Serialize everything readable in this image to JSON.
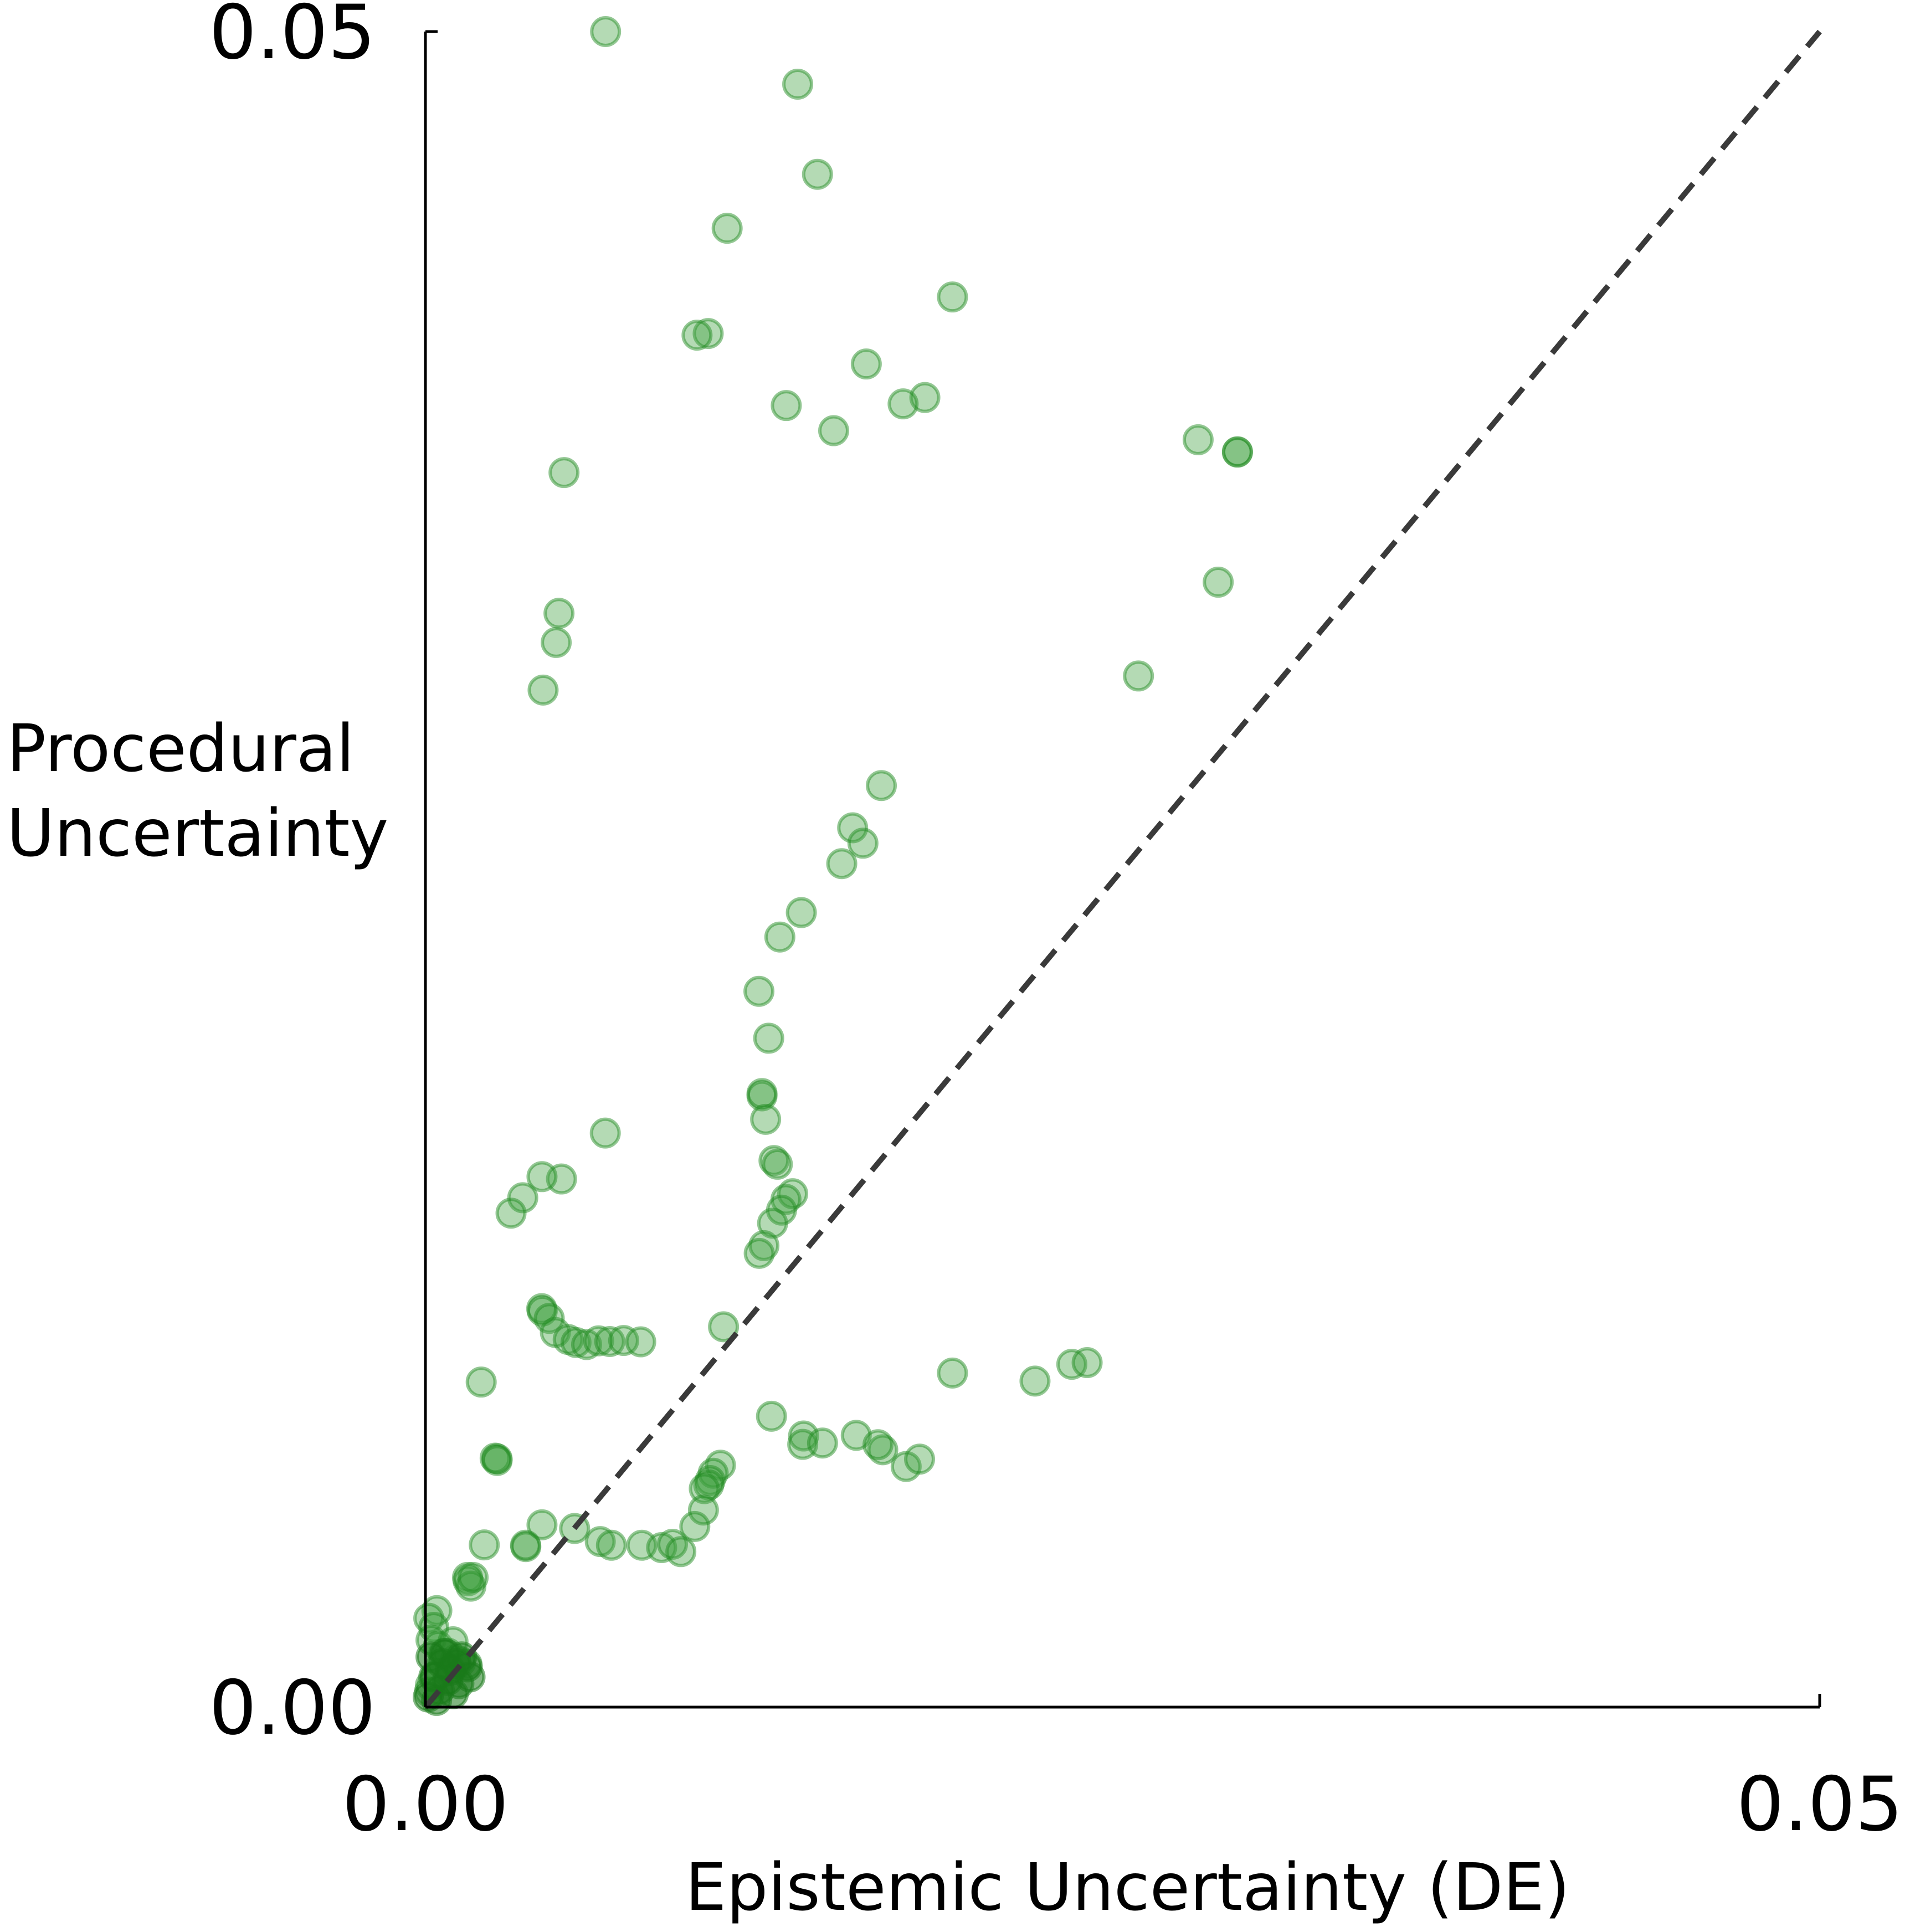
{
  "chart_data": {
    "type": "scatter",
    "title": "",
    "xlabel": "Epistemic Uncertainty (DE)",
    "ylabel_lines": [
      "Procedural",
      "Uncertainty"
    ],
    "xlim": [
      0.0,
      0.05
    ],
    "ylim": [
      0.0,
      0.05
    ],
    "x_tick_labels": [
      "0.00",
      "0.05"
    ],
    "y_tick_labels": [
      "0.00",
      "0.05"
    ],
    "x_ticks": [
      0.0,
      0.05
    ],
    "y_ticks": [
      0.0,
      0.05
    ],
    "grid": false,
    "reference_line": {
      "style": "dashed",
      "from": [
        0.0,
        0.0
      ],
      "to": [
        0.05,
        0.05
      ],
      "color": "#3a3a3a"
    },
    "point_color": "#1f8a1f",
    "point_fill": "#3a9e3a",
    "point_alpha": 0.38,
    "series": [
      {
        "name": "points",
        "x": [
          0.00646,
          0.01335,
          0.01406,
          0.01082,
          0.0189,
          0.01014,
          0.00974,
          0.01581,
          0.01791,
          0.01713,
          0.01294,
          0.01464,
          0.02771,
          0.02912,
          0.02912,
          0.02843,
          0.02557,
          0.00497,
          0.00479,
          0.00469,
          0.00422,
          0.01635,
          0.01532,
          0.01493,
          0.01569,
          0.01348,
          0.01271,
          0.01196,
          0.00645,
          0.01231,
          0.01207,
          0.01207,
          0.0122,
          0.0125,
          0.01262,
          0.01317,
          0.01293,
          0.01277,
          0.01245,
          0.01214,
          0.01197,
          0.00488,
          0.00418,
          0.00349,
          0.00307,
          0.00417,
          0.00419,
          0.00444,
          0.00466,
          0.00512,
          0.0054,
          0.00578,
          0.00621,
          0.00661,
          0.00711,
          0.00772,
          0.01069,
          0.0189,
          0.02186,
          0.02318,
          0.02373,
          0.002,
          0.00257,
          0.0025,
          0.00257,
          0.01241,
          0.01356,
          0.01353,
          0.01424,
          0.01545,
          0.0164,
          0.01623,
          0.01724,
          0.01772,
          0.01058,
          0.01032,
          0.01021,
          0.01016,
          0.01,
          0.00997,
          0.00966,
          0.00418,
          0.00535,
          0.0036,
          0.00359,
          0.00211,
          0.00151,
          0.00153,
          0.00163,
          0.00171,
          0.00627,
          0.00667,
          0.00776,
          0.00847,
          0.00886,
          0.00916,
          0.00041,
          0.00012,
          0.0003,
          0.0002,
          0.00046,
          0.00081,
          0.00108,
          0.00127,
          0.00149,
          0.00051,
          0.00066,
          0.00099,
          0.00018,
          0.00035,
          0.00014
        ],
        "y": [
          0.05,
          0.04843,
          0.04574,
          0.04413,
          0.04208,
          0.04099,
          0.04094,
          0.04008,
          0.03908,
          0.03889,
          0.03884,
          0.03809,
          0.03782,
          0.03745,
          0.03746,
          0.03357,
          0.03077,
          0.03684,
          0.03264,
          0.03177,
          0.03035,
          0.0275,
          0.02624,
          0.02517,
          0.02578,
          0.02371,
          0.02298,
          0.02136,
          0.01713,
          0.01996,
          0.01824,
          0.01831,
          0.01754,
          0.01631,
          0.0162,
          0.01532,
          0.01515,
          0.01483,
          0.01444,
          0.01377,
          0.01354,
          0.01576,
          0.01583,
          0.0152,
          0.01474,
          0.01189,
          0.01182,
          0.0116,
          0.01118,
          0.01097,
          0.01088,
          0.01082,
          0.01093,
          0.01091,
          0.01094,
          0.0109,
          0.01135,
          0.00997,
          0.00973,
          0.01023,
          0.01028,
          0.0097,
          0.00741,
          0.00743,
          0.00736,
          0.00868,
          0.00809,
          0.00784,
          0.00788,
          0.00811,
          0.00768,
          0.00783,
          0.00718,
          0.0074,
          0.00722,
          0.00698,
          0.00676,
          0.00663,
          0.00652,
          0.00588,
          0.00539,
          0.00544,
          0.00533,
          0.00479,
          0.00483,
          0.00484,
          0.00387,
          0.00377,
          0.00361,
          0.00387,
          0.00494,
          0.00483,
          0.00483,
          0.00476,
          0.00486,
          0.00464,
          0.00288,
          0.00265,
          0.00238,
          0.002,
          0.00182,
          0.00161,
          0.00142,
          0.00135,
          0.00128,
          0.001,
          0.0016,
          0.00195,
          0.00065,
          0.0009,
          0.00045
        ]
      }
    ]
  }
}
